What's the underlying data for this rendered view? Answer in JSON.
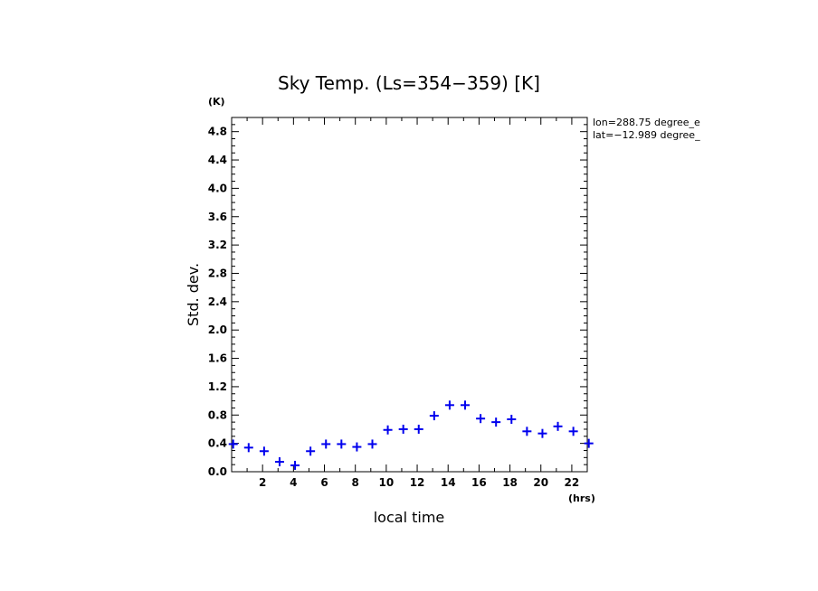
{
  "chart_data": {
    "type": "scatter",
    "title": "Sky Temp. (Ls=354−359) [K]",
    "xlabel": "local time",
    "ylabel": "Std. dev.",
    "x_unit": "(hrs)",
    "y_unit": "(K)",
    "xlim": [
      0,
      23
    ],
    "ylim": [
      0,
      5.0
    ],
    "x_ticks": [
      2,
      4,
      6,
      8,
      10,
      12,
      14,
      16,
      18,
      20,
      22
    ],
    "y_ticks": [
      0.0,
      0.4,
      0.8,
      1.2,
      1.6,
      2.0,
      2.4,
      2.8,
      3.2,
      3.6,
      4.0,
      4.4,
      4.8
    ],
    "x_tick_labels": [
      "2",
      "4",
      "6",
      "8",
      "10",
      "12",
      "14",
      "16",
      "18",
      "20",
      "22"
    ],
    "y_tick_labels": [
      "0.0",
      "0.4",
      "0.8",
      "1.2",
      "1.6",
      "2.0",
      "2.4",
      "2.8",
      "3.2",
      "3.6",
      "4.0",
      "4.4",
      "4.8"
    ],
    "marker_color": "#0000ee",
    "series": [
      {
        "name": "std-dev",
        "x": [
          0.1,
          1.1,
          2.1,
          3.1,
          4.1,
          5.1,
          6.1,
          7.1,
          8.1,
          9.1,
          10.1,
          11.1,
          12.1,
          13.1,
          14.1,
          15.1,
          16.1,
          17.1,
          18.1,
          19.1,
          20.1,
          21.1,
          22.1,
          23.1
        ],
        "y": [
          0.39,
          0.34,
          0.29,
          0.14,
          0.09,
          0.29,
          0.39,
          0.39,
          0.35,
          0.39,
          0.59,
          0.6,
          0.6,
          0.79,
          0.94,
          0.94,
          0.75,
          0.7,
          0.74,
          0.57,
          0.54,
          0.64,
          0.57,
          0.4
        ]
      }
    ],
    "annotations": [
      "lon=288.75 degree_e",
      "lat=−12.989 degree_"
    ]
  }
}
